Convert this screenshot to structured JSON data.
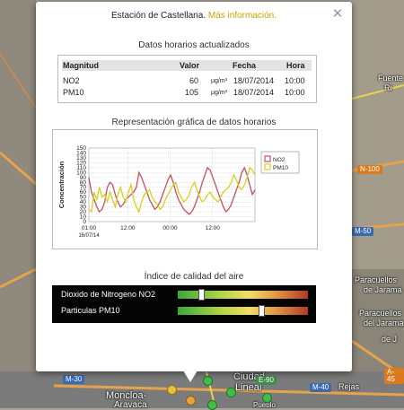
{
  "map": {
    "labels": {
      "fuente_1": "Fuente",
      "fuente_2": "Ri",
      "moncloa": "Moncloa-",
      "aravaca": "Aravaca",
      "ciudad": "Ciudad",
      "lineal": "Lineal",
      "rejas": "Rejas",
      "pueblo": "Pueblo",
      "paracuellos_1": "Paracuellos",
      "paracuellos_2": "de Jarama",
      "paracuellos_3": "Paracuellos",
      "paracuellos_4": "del Jarama",
      "de_j": "de J"
    },
    "shields": {
      "n100": "N-100",
      "m50": "M-50",
      "m30": "M-30",
      "m40": "M-40",
      "e90": "E-90",
      "a45": "A-45"
    }
  },
  "popup": {
    "station_text": "Estación de Castellana.",
    "more_info_link": "Más información.",
    "close_symbol": "✕",
    "table_title": "Datos horarios actualizados",
    "table": {
      "headers": [
        "Magnitud",
        "Valor",
        "Fecha",
        "Hora"
      ],
      "unit": "µg/m³",
      "rows": [
        {
          "magnitud": "NO2",
          "valor": "60",
          "fecha": "18/07/2014",
          "hora": "10:00"
        },
        {
          "magnitud": "PM10",
          "valor": "105",
          "fecha": "18/07/2014",
          "hora": "10:00"
        }
      ]
    },
    "chart_title": "Representación gráfica de datos horarios",
    "aqi_title": "Índice de calidad del aire",
    "aqi": [
      {
        "label": "Dioxido de Nitrogeno NO2",
        "level_fraction": 0.17
      },
      {
        "label": "Particulas PM10",
        "level_fraction": 0.65
      }
    ]
  },
  "chart_data": {
    "type": "line",
    "ylabel": "Concentración",
    "ylim": [
      0,
      150
    ],
    "yticks": [
      "0",
      "10",
      "20",
      "30",
      "40",
      "50",
      "60",
      "70",
      "80",
      "90",
      "100",
      "110",
      "120",
      "130",
      "140",
      "150"
    ],
    "xticks": [
      {
        "label": "01:00",
        "sublabel": "16/07/14",
        "hour": 0
      },
      {
        "label": "12:00",
        "sublabel": "",
        "hour": 11
      },
      {
        "label": "00:00",
        "sublabel": "",
        "hour": 23
      },
      {
        "label": "12:00",
        "sublabel": "",
        "hour": 35
      }
    ],
    "series": [
      {
        "name": "NO2",
        "color": "#c85060",
        "values": [
          90,
          60,
          45,
          30,
          20,
          25,
          40,
          70,
          80,
          75,
          55,
          40,
          30,
          35,
          45,
          50,
          55,
          60,
          70,
          100,
          90,
          75,
          60,
          45,
          35,
          25,
          30,
          40,
          55,
          70,
          85,
          95,
          80,
          60,
          45,
          35,
          25,
          20,
          15,
          20,
          30,
          45,
          60,
          80,
          95,
          110,
          105,
          90,
          75,
          60,
          45,
          30,
          20,
          25,
          35,
          50,
          65,
          80,
          100,
          110,
          95,
          75,
          55,
          65
        ]
      },
      {
        "name": "PM10",
        "color": "#d8d020",
        "values": [
          25,
          20,
          60,
          45,
          70,
          50,
          55,
          40,
          60,
          45,
          30,
          55,
          70,
          50,
          40,
          60,
          75,
          45,
          30,
          20,
          40,
          55,
          60,
          65,
          50,
          40,
          35,
          25,
          30,
          45,
          55,
          65,
          75,
          80,
          60,
          50,
          40,
          45,
          55,
          70,
          80,
          65,
          50,
          40,
          45,
          55,
          60,
          50,
          45,
          40,
          50,
          60,
          65,
          70,
          80,
          95,
          85,
          70,
          65,
          75,
          90,
          110,
          105,
          95
        ]
      }
    ],
    "legend_position": "top-right",
    "grid": true
  }
}
